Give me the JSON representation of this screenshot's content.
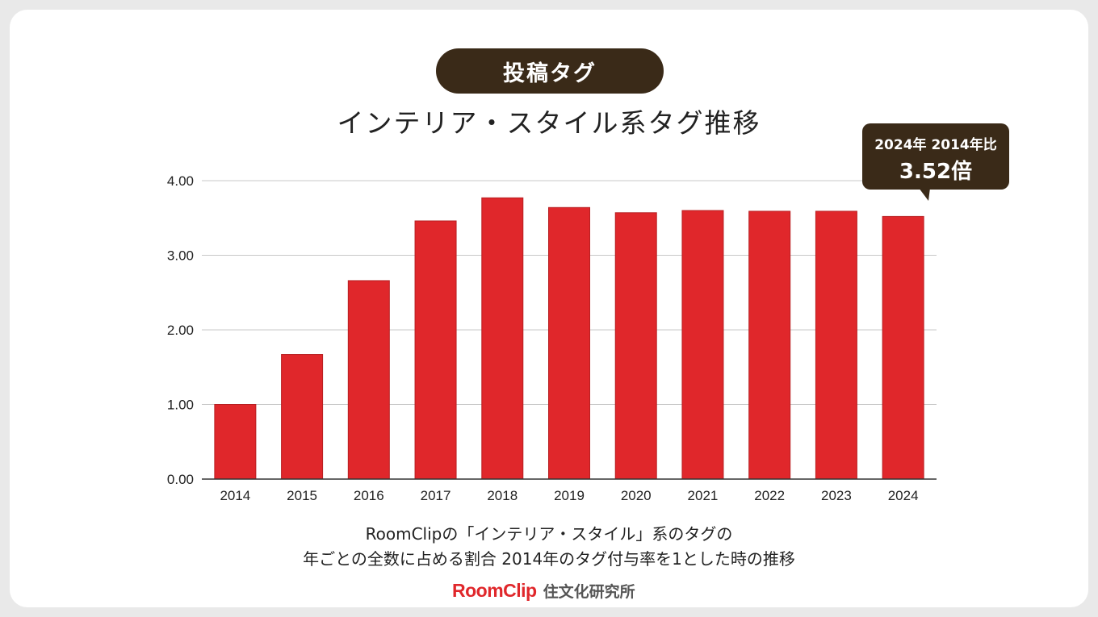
{
  "header": {
    "pill_label": "投稿タグ",
    "title": "インテリア・スタイル系タグ推移"
  },
  "callout": {
    "line1": "2024年 2014年比",
    "line2": "3.52倍"
  },
  "caption": {
    "line1": "RoomClipの「インテリア・スタイル」系のタグの",
    "line2": "年ごとの全数に占める割合 2014年のタグ付与率を1とした時の推移"
  },
  "footer": {
    "brand": "RoomClip",
    "org": "住文化研究所"
  },
  "colors": {
    "bar": "#e0272b",
    "dark": "#3a2a18",
    "grid": "#c8c8c8"
  },
  "chart_data": {
    "type": "bar",
    "categories": [
      "2014",
      "2015",
      "2016",
      "2017",
      "2018",
      "2019",
      "2020",
      "2021",
      "2022",
      "2023",
      "2024"
    ],
    "values": [
      1.0,
      1.67,
      2.66,
      3.46,
      3.77,
      3.64,
      3.57,
      3.6,
      3.59,
      3.59,
      3.52
    ],
    "ylim": [
      0,
      4
    ],
    "yticks": [
      "0.00",
      "1.00",
      "2.00",
      "3.00",
      "4.00"
    ],
    "grid": true,
    "title": "インテリア・スタイル系タグ推移",
    "xlabel": "",
    "ylabel": ""
  }
}
